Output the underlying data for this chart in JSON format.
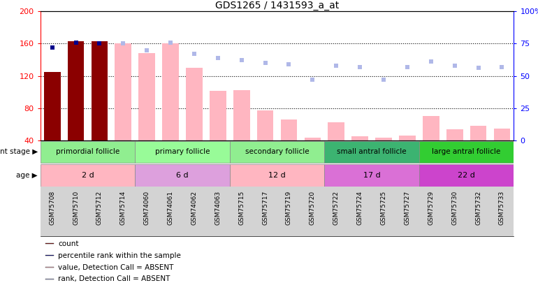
{
  "title": "GDS1265 / 1431593_a_at",
  "sample_labels": [
    "GSM75708",
    "GSM75710",
    "GSM75712",
    "GSM75714",
    "GSM74060",
    "GSM74061",
    "GSM74062",
    "GSM74063",
    "GSM75715",
    "GSM75717",
    "GSM75719",
    "GSM75720",
    "GSM75722",
    "GSM75724",
    "GSM75725",
    "GSM75727",
    "GSM75729",
    "GSM75730",
    "GSM75732",
    "GSM75733"
  ],
  "value_bars": [
    125,
    163,
    163,
    160,
    148,
    160,
    130,
    101,
    102,
    77,
    66,
    43,
    62,
    45,
    43,
    46,
    70,
    54,
    58,
    55
  ],
  "value_present": [
    true,
    true,
    true,
    false,
    false,
    false,
    false,
    false,
    false,
    false,
    false,
    false,
    false,
    false,
    false,
    false,
    false,
    false,
    false,
    false
  ],
  "rank_dots": [
    72,
    76,
    75,
    75,
    70,
    76,
    67,
    64,
    62,
    60,
    59,
    47,
    58,
    57,
    47,
    57,
    61,
    58,
    56,
    57
  ],
  "rank_present": [
    true,
    true,
    true,
    false,
    false,
    false,
    false,
    false,
    false,
    false,
    false,
    false,
    false,
    false,
    false,
    false,
    false,
    false,
    false,
    false
  ],
  "ylim_left": [
    40,
    200
  ],
  "ylim_right": [
    0,
    100
  ],
  "yticks_left": [
    40,
    80,
    120,
    160,
    200
  ],
  "yticks_right": [
    0,
    25,
    50,
    75,
    100
  ],
  "ytick_labels_right": [
    "0",
    "25",
    "50",
    "75",
    "100%"
  ],
  "color_bar_present": "#8B0000",
  "color_bar_absent": "#FFB6C1",
  "color_dot_present": "#00008B",
  "color_dot_absent": "#B0B8E8",
  "xtick_bg": "#D3D3D3",
  "groups": [
    {
      "label": "primordial follicle",
      "age": "2 d",
      "start": 0,
      "end": 4,
      "color_stage": "#90EE90",
      "color_age": "#FFB6C1"
    },
    {
      "label": "primary follicle",
      "age": "6 d",
      "start": 4,
      "end": 8,
      "color_stage": "#98FB98",
      "color_age": "#DDA0DD"
    },
    {
      "label": "secondary follicle",
      "age": "12 d",
      "start": 8,
      "end": 12,
      "color_stage": "#90EE90",
      "color_age": "#FFB6C1"
    },
    {
      "label": "small antral follicle",
      "age": "17 d",
      "start": 12,
      "end": 16,
      "color_stage": "#3CB371",
      "color_age": "#DA70D6"
    },
    {
      "label": "large antral follicle",
      "age": "22 d",
      "start": 16,
      "end": 20,
      "color_stage": "#32CD32",
      "color_age": "#CC44CC"
    }
  ],
  "legend_items": [
    {
      "label": "count",
      "color": "#8B0000",
      "col": 0
    },
    {
      "label": "percentile rank within the sample",
      "color": "#00008B",
      "col": 0
    },
    {
      "label": "value, Detection Call = ABSENT",
      "color": "#FFB6C1",
      "col": 0
    },
    {
      "label": "rank, Detection Call = ABSENT",
      "color": "#B0B8E8",
      "col": 0
    }
  ]
}
